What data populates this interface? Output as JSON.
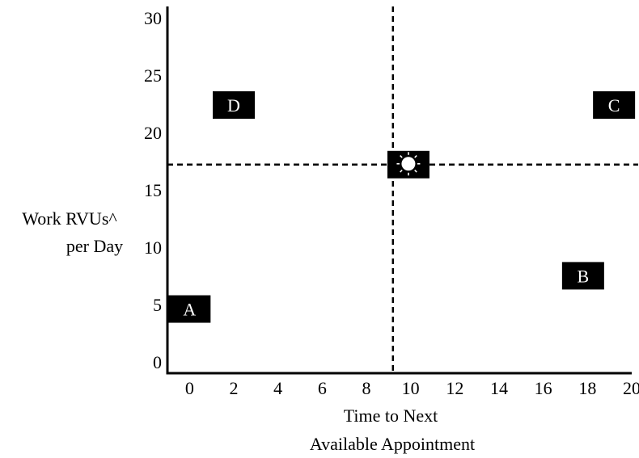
{
  "chart_data": {
    "type": "scatter",
    "title": "",
    "xlabel_lines": [
      "Time to Next",
      "Available Appointment"
    ],
    "ylabel_lines": [
      "Work RVUs^",
      "per Day"
    ],
    "xlim": [
      -1,
      20
    ],
    "ylim": [
      -1,
      31
    ],
    "xticks": [
      0,
      2,
      4,
      6,
      8,
      10,
      12,
      14,
      16,
      18,
      20
    ],
    "yticks": [
      0,
      5,
      10,
      15,
      20,
      25,
      30
    ],
    "grid": false,
    "reference_lines": {
      "x": 9.2,
      "y": 17.2
    },
    "points": [
      {
        "label": "A",
        "x": 0,
        "y": 4.6
      },
      {
        "label": "B",
        "x": 17.8,
        "y": 7.5
      },
      {
        "label": "C",
        "x": 19.2,
        "y": 22.4
      },
      {
        "label": "D",
        "x": 2,
        "y": 22.4
      },
      {
        "label": "",
        "symbol": "sun-icon",
        "x": 9.9,
        "y": 17.2
      }
    ]
  }
}
